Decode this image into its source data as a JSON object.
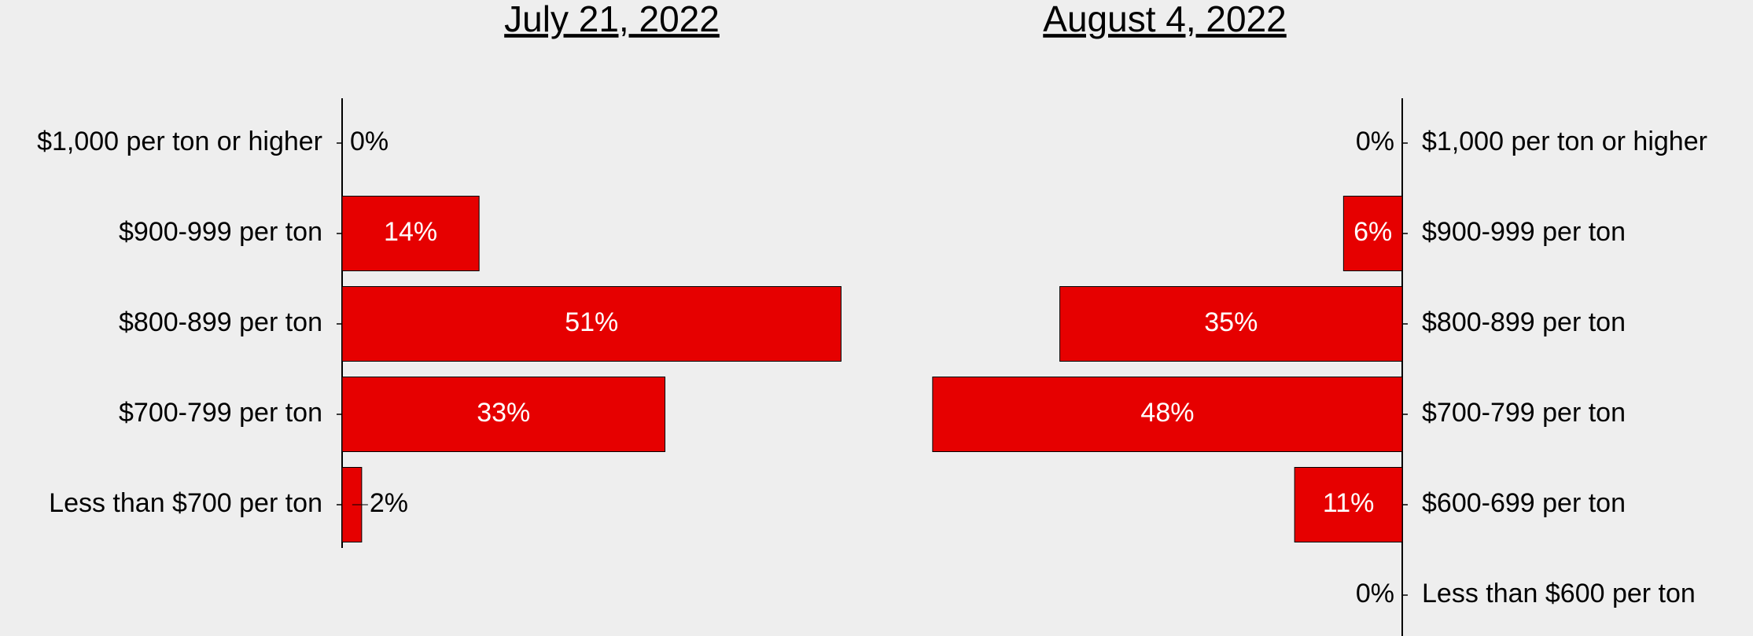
{
  "chart_data": [
    {
      "type": "bar",
      "orientation": "horizontal",
      "reversed": false,
      "title": "July 21, 2022",
      "categories": [
        "$1,000 per ton or higher",
        "$900-999 per ton",
        "$800-899 per ton",
        "$700-799 per ton",
        "Less than $700 per ton"
      ],
      "values": [
        0,
        14,
        51,
        33,
        2
      ],
      "value_labels": [
        "0%",
        "14%",
        "51%",
        "33%",
        "2%"
      ],
      "color": "#e60000"
    },
    {
      "type": "bar",
      "orientation": "horizontal",
      "reversed": true,
      "title": "August 4, 2022",
      "categories": [
        "$1,000 per ton or higher",
        "$900-999 per ton",
        "$800-899 per ton",
        "$700-799 per ton",
        "$600-699 per ton",
        "Less than $600 per ton"
      ],
      "values": [
        0,
        6,
        35,
        48,
        11,
        0
      ],
      "value_labels": [
        "0%",
        "6%",
        "35%",
        "48%",
        "11%",
        "0%"
      ],
      "color": "#e60000"
    }
  ]
}
